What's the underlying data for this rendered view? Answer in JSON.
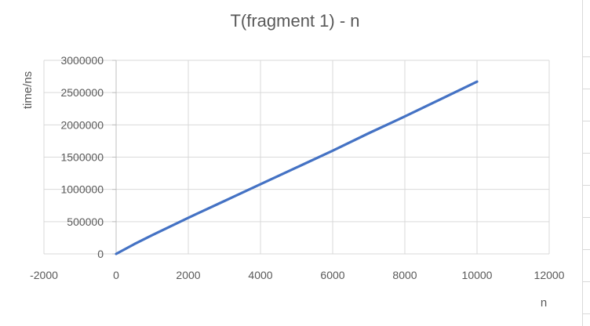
{
  "chart_data": {
    "type": "line",
    "title": "T(fragment 1) - n",
    "xlabel": "n",
    "ylabel": "time/ns",
    "xlim": [
      -2000,
      12000
    ],
    "ylim": [
      0,
      3000000
    ],
    "x_ticks": [
      -2000,
      0,
      2000,
      4000,
      6000,
      8000,
      10000,
      12000
    ],
    "x_tick_labels": [
      "-2000",
      "0",
      "2000",
      "4000",
      "6000",
      "8000",
      "10000",
      "12000"
    ],
    "y_ticks": [
      0,
      500000,
      1000000,
      1500000,
      2000000,
      2500000,
      3000000
    ],
    "y_tick_labels": [
      "0",
      "500000",
      "1000000",
      "1500000",
      "2000000",
      "2500000",
      "3000000"
    ],
    "grid": true,
    "legend": "none",
    "series": [
      {
        "color": "#4472c4",
        "x": [
          0,
          500,
          1000,
          2000,
          3000,
          4000,
          5000,
          6000,
          7000,
          8000,
          9000,
          10000
        ],
        "y": [
          0,
          150000,
          290000,
          560000,
          820000,
          1080000,
          1340000,
          1600000,
          1870000,
          2130000,
          2400000,
          2670000
        ]
      }
    ]
  }
}
